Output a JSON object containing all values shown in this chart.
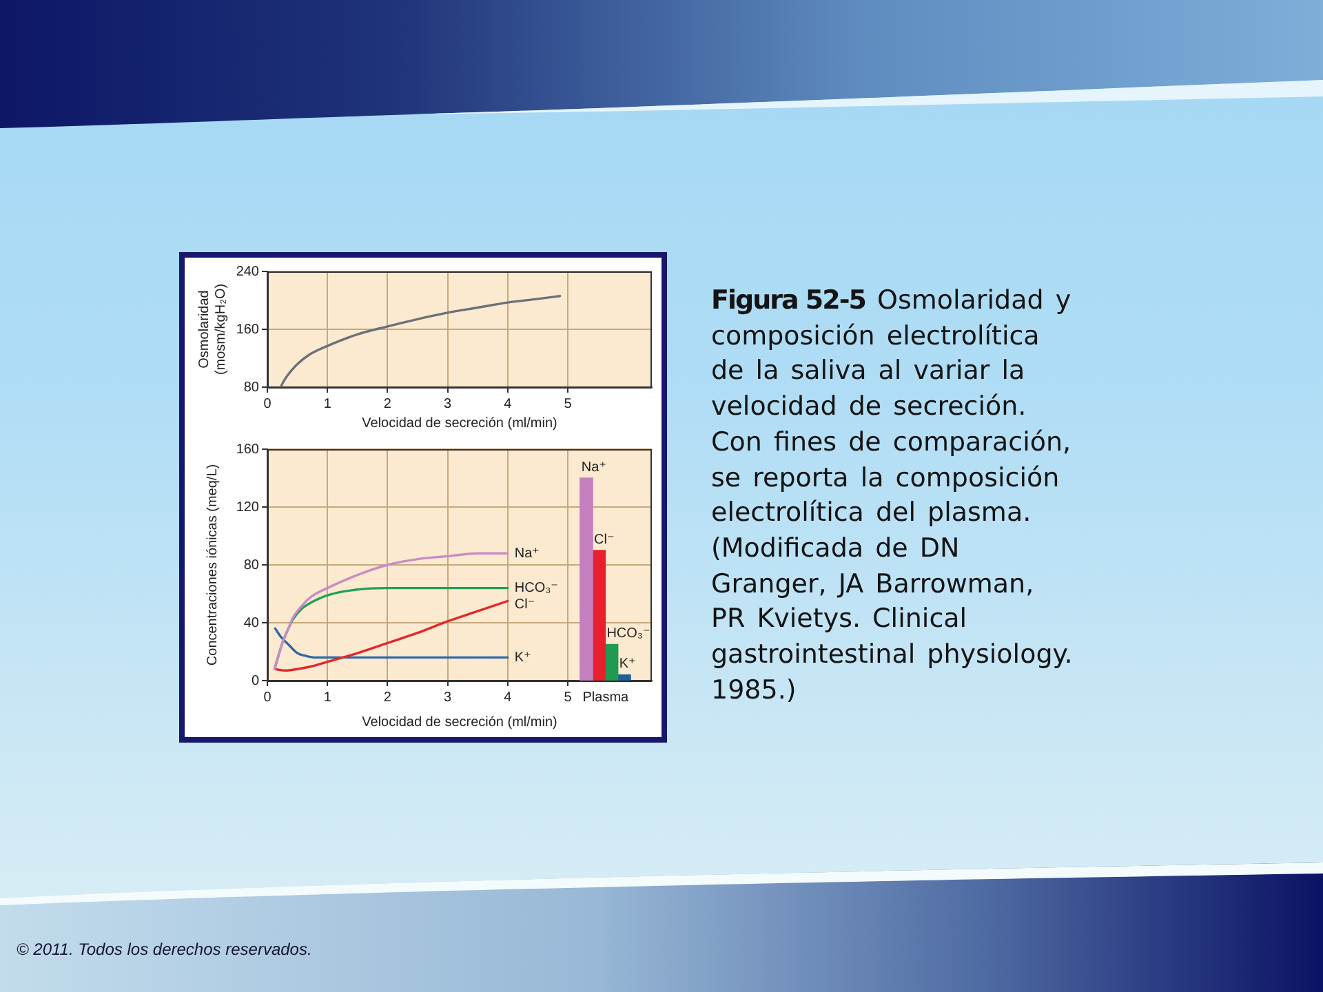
{
  "chart_data": [
    {
      "type": "line",
      "xlabel": "Velocidad de secreción (ml/min)",
      "ylabel": "Osmolaridad (mosm/kgH₂O)",
      "x": [
        0.22,
        0.3,
        0.4,
        0.5,
        0.7,
        1,
        1.5,
        2,
        2.5,
        3,
        3.5,
        4,
        4.5,
        4.87
      ],
      "series": [
        {
          "color": "#6c7079",
          "values": [
            80,
            92,
            103,
            112,
            125,
            137,
            153,
            164,
            174,
            183,
            190,
            197,
            202,
            206
          ]
        }
      ],
      "xlim": [
        0,
        6.4
      ],
      "ylim": [
        80,
        240
      ],
      "xticks": [
        0,
        1,
        2,
        3,
        4,
        5
      ],
      "yticks": [
        80,
        160,
        240
      ],
      "grid": true,
      "legend": false,
      "marker": "none",
      "annotations": [
        "Figura 52-5",
        "Osmolaridad y composición electrolítica de la saliva al variar la velocidad de secreción. Con fines de comparación, se reporta la composición electrolítica del plasma. (Modificada de DN Granger, JA Barrowman, PR Kvietys. Clinical gastrointestinal physiology. 1985.)",
        "© 2011. Todos los derechos reservados."
      ]
    },
    {
      "type": "line",
      "xlabel": "Velocidad de secreción (ml/min)",
      "ylabel": "Concentraciones iónicas (meq/L)",
      "series": [
        {
          "name": "Na⁺",
          "color": "#c98cc4",
          "x": [
            0.12,
            0.25,
            0.35,
            0.42,
            0.58,
            0.73,
            1,
            1.5,
            2,
            2.5,
            3,
            3.5,
            4
          ],
          "values": [
            8,
            26,
            36,
            43,
            52,
            58,
            64,
            73,
            80,
            84,
            86,
            88,
            88
          ]
        },
        {
          "name": "HCO₃⁻",
          "color": "#22a055",
          "x": [
            0.12,
            0.25,
            0.35,
            0.42,
            0.58,
            0.73,
            1,
            1.5,
            2,
            2.5,
            3,
            3.5,
            4
          ],
          "values": [
            8,
            26,
            36,
            42,
            50,
            54,
            59,
            63,
            64,
            64,
            64,
            64,
            64
          ]
        },
        {
          "name": "Cl⁻",
          "color": "#e5262b",
          "x": [
            0.12,
            0.3,
            0.5,
            0.75,
            1,
            1.5,
            2,
            2.5,
            3,
            3.5,
            4
          ],
          "values": [
            8,
            7,
            8,
            10,
            13,
            19,
            26,
            33,
            41,
            48,
            55
          ]
        },
        {
          "name": "K⁺",
          "color": "#2d6aa6",
          "x": [
            0.13,
            0.23,
            0.35,
            0.5,
            0.65,
            0.8,
            1,
            2,
            3,
            4
          ],
          "values": [
            36,
            30,
            25,
            19,
            17,
            16,
            16,
            16,
            16,
            16
          ]
        },
        {
          "type": "bar",
          "name": "Na⁺",
          "color": "#c47fbf",
          "x": [
            5.31
          ],
          "values": [
            140
          ]
        },
        {
          "type": "bar",
          "name": "Cl⁻",
          "color": "#e8202e",
          "x": [
            5.52
          ],
          "values": [
            90
          ]
        },
        {
          "type": "bar",
          "name": "HCO₃⁻",
          "color": "#1f9a50",
          "x": [
            5.73
          ],
          "values": [
            25
          ]
        },
        {
          "type": "bar",
          "name": "K⁺",
          "color": "#1b5f9b",
          "x": [
            5.94
          ],
          "values": [
            4
          ]
        }
      ],
      "xlim": [
        0,
        6.4
      ],
      "ylim": [
        0,
        160
      ],
      "xticks": [
        0,
        1,
        2,
        3,
        4,
        5,
        {
          "value": 5.63,
          "label": "Plasma"
        }
      ],
      "yticks": [
        0,
        40,
        80,
        120,
        160
      ],
      "grid": true,
      "legend": false,
      "marker": "none"
    }
  ]
}
